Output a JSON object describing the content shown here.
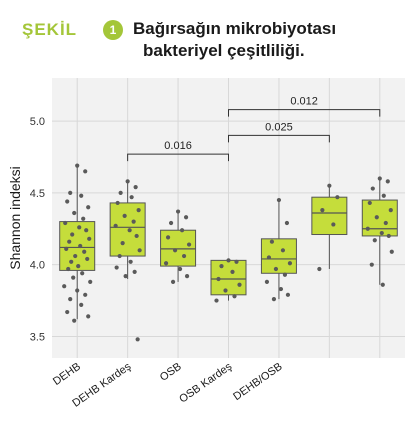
{
  "header": {
    "label": "ŞEKİL",
    "number": "1",
    "title_line1": "Bağırsağın mikrobiyotası",
    "title_line2": "bakteriyel çeşitliliği."
  },
  "colors": {
    "accent": "#a4c639",
    "box_fill": "#c5dd3b",
    "box_stroke": "#555555",
    "point": "#5a5a5a",
    "panel_bg": "#f2f2f2",
    "grid": "#d8d8d8"
  },
  "chart_data": {
    "type": "box",
    "ylabel": "Shannon indeksi",
    "ylim": [
      3.35,
      5.3
    ],
    "yticks": [
      3.5,
      4.0,
      4.5,
      5.0
    ],
    "ytick_labels": [
      "3.5",
      "4.0",
      "4.5",
      "5.0"
    ],
    "grid": true,
    "categories": [
      "DEHB",
      "DEHB Kardeş",
      "OSB",
      "OSB Kardeş",
      "DEHB/OSB",
      "",
      ""
    ],
    "boxes": [
      {
        "q1": 3.96,
        "median": 4.12,
        "q3": 4.3,
        "whisker_low": 3.62,
        "whisker_high": 4.7
      },
      {
        "q1": 4.06,
        "median": 4.26,
        "q3": 4.43,
        "whisker_low": 3.9,
        "whisker_high": 4.58
      },
      {
        "q1": 3.99,
        "median": 4.11,
        "q3": 4.24,
        "whisker_low": 3.88,
        "whisker_high": 4.37
      },
      {
        "q1": 3.79,
        "median": 3.9,
        "q3": 4.03,
        "whisker_low": 3.75,
        "whisker_high": 4.03
      },
      {
        "q1": 3.94,
        "median": 4.04,
        "q3": 4.18,
        "whisker_low": 3.76,
        "whisker_high": 4.45
      },
      {
        "q1": 4.21,
        "median": 4.36,
        "q3": 4.47,
        "whisker_low": 3.97,
        "whisker_high": 4.55
      },
      {
        "q1": 4.2,
        "median": 4.25,
        "q3": 4.45,
        "whisker_low": 3.86,
        "whisker_high": 4.6
      }
    ],
    "points": [
      [
        4.69,
        4.65,
        4.5,
        4.48,
        4.44,
        4.4,
        4.36,
        4.32,
        4.29,
        4.26,
        4.24,
        4.21,
        4.18,
        4.16,
        4.13,
        4.11,
        4.09,
        4.06,
        4.04,
        4.02,
        3.99,
        3.97,
        3.94,
        3.91,
        3.88,
        3.85,
        3.82,
        3.79,
        3.76,
        3.72,
        3.67,
        3.64,
        3.61
      ],
      [
        4.58,
        4.54,
        4.5,
        4.47,
        4.43,
        4.38,
        4.34,
        4.3,
        4.27,
        4.24,
        4.2,
        4.15,
        4.1,
        4.06,
        4.02,
        3.98,
        3.95,
        3.92,
        3.48
      ],
      [
        4.37,
        4.33,
        4.29,
        4.24,
        4.19,
        4.14,
        4.1,
        4.06,
        4.01,
        3.97,
        3.92,
        3.88
      ],
      [
        4.03,
        4.02,
        3.99,
        3.95,
        3.9,
        3.86,
        3.82,
        3.78,
        3.75
      ],
      [
        4.45,
        4.29,
        4.16,
        4.1,
        4.05,
        4.01,
        3.97,
        3.93,
        3.88,
        3.83,
        3.79,
        3.76
      ],
      [
        4.55,
        4.47,
        4.38,
        4.28,
        3.97
      ],
      [
        4.6,
        4.58,
        4.53,
        4.48,
        4.43,
        4.38,
        4.33,
        4.29,
        4.25,
        4.22,
        4.2,
        4.17,
        4.09,
        4.0,
        3.86
      ]
    ],
    "comparisons": [
      {
        "from": 1,
        "to": 3,
        "label": "0.016",
        "y": 4.77
      },
      {
        "from": 3,
        "to": 5,
        "label": "0.025",
        "y": 4.9
      },
      {
        "from": 3,
        "to": 6,
        "label": "0.012",
        "y": 5.08
      }
    ]
  }
}
